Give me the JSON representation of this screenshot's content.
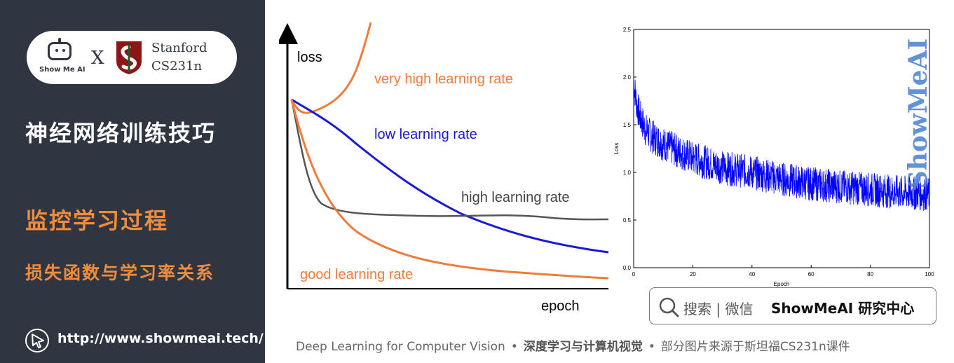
{
  "sidebar": {
    "logo": {
      "showmeai_text": "Show Me AI",
      "x_mark": "X",
      "stanford_name": "Stanford",
      "stanford_course": "CS231n"
    },
    "title": "神经网络训练技巧",
    "section": "监控学习过程",
    "subsection": "损失函数与学习率关系",
    "url": "http://www.showmeai.tech/",
    "url_icon": "cursor-arrow-icon"
  },
  "main_chart": {
    "y_label": "loss",
    "x_label": "epoch",
    "curves": [
      {
        "name": "very high learning rate",
        "color": "#ee7d3c"
      },
      {
        "name": "low learning rate",
        "color": "#1a1ad6"
      },
      {
        "name": "high learning rate",
        "color": "#444444"
      },
      {
        "name": "good learning rate",
        "color": "#ee7d3c"
      }
    ]
  },
  "chart_data": {
    "type": "line",
    "xlabel": "Epoch",
    "ylabel": "Loss",
    "xlim": [
      0,
      100
    ],
    "ylim": [
      0,
      2.5
    ],
    "x_ticks": [
      "0",
      "20",
      "40",
      "60",
      "80",
      "100"
    ],
    "y_ticks": [
      "0.0",
      "0.5",
      "1.0",
      "1.5",
      "2.0",
      "2.5"
    ],
    "series": [
      {
        "color": "#0000ff",
        "x": [
          0,
          1,
          2,
          4,
          6,
          10,
          15,
          20,
          25,
          30,
          40,
          50,
          60,
          70,
          80,
          90,
          100
        ],
        "y": [
          1.95,
          1.72,
          1.6,
          1.45,
          1.38,
          1.3,
          1.22,
          1.15,
          1.1,
          1.05,
          1.0,
          0.93,
          0.88,
          0.85,
          0.82,
          0.79,
          0.77
        ]
      }
    ],
    "noise_amplitude": 0.18,
    "grid": false
  },
  "watermark": "ShowMeAI",
  "search_box": {
    "icon": "search-icon",
    "text": "搜索 | 微信",
    "brand": "ShowMeAI 研究中心"
  },
  "footer": {
    "left": "Deep Learning for Computer Vision",
    "sep": "•",
    "middle": "深度学习与计算机视觉",
    "right": "部分图片来源于斯坦福CS231n课件"
  },
  "colors": {
    "sidebar_bg": "#2f3541",
    "accent_orange": "#f08c3d",
    "plot_blue": "#0000ff"
  }
}
